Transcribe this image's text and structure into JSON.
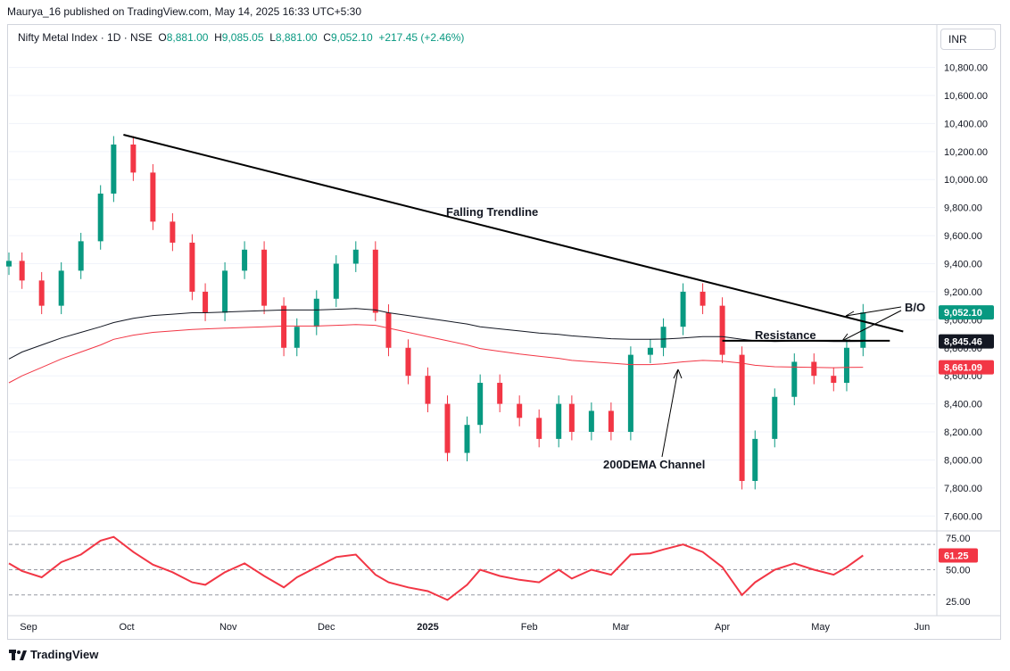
{
  "header": {
    "published_line": "Maurya_16 published on TradingView.com, May 14, 2025 16:33 UTC+5:30"
  },
  "legend": {
    "symbol": "Nifty Metal Index · 1D · NSE",
    "o_label": "O",
    "o_value": "8,881.00",
    "h_label": "H",
    "h_value": "9,085.05",
    "l_label": "L",
    "l_value": "8,881.00",
    "c_label": "C",
    "c_value": "9,052.10",
    "change": "+217.45 (+2.46%)"
  },
  "currency_button": "INR",
  "colors": {
    "up": "#089981",
    "down": "#f23645",
    "ema_black": "#131722",
    "ema_red": "#f23645",
    "rsi": "#f23645",
    "grid": "#d1d4dc"
  },
  "price_axis": {
    "ticks": [
      "10,800.00",
      "10,600.00",
      "10,400.00",
      "10,200.00",
      "10,000.00",
      "9,800.00",
      "9,600.00",
      "9,400.00",
      "9,200.00",
      "9,000.00",
      "8,800.00",
      "8,600.00",
      "8,400.00",
      "8,200.00",
      "8,000.00",
      "7,800.00",
      "7,600.00"
    ],
    "tag_close": "9,052.10",
    "tag_ema_black": "8,845.46",
    "tag_ema_red": "8,661.09"
  },
  "rsi_axis": {
    "ticks": [
      "75.00",
      "50.00",
      "25.00"
    ],
    "tag_rsi": "61.25"
  },
  "time_axis": {
    "labels": [
      "Sep",
      "Oct",
      "Nov",
      "Dec",
      "2025",
      "Feb",
      "Mar",
      "Apr",
      "May",
      "Jun"
    ]
  },
  "annotations": {
    "trendline": "Falling Trendline",
    "resistance": "Resistance",
    "channel": "200DEMA Channel",
    "breakout": "B/O"
  },
  "footer": {
    "brand": "TradingView"
  },
  "chart_data": {
    "type": "candlestick",
    "symbol": "Nifty Metal Index",
    "interval": "1D",
    "exchange": "NSE",
    "x": [
      "2024-08-26",
      "2024-08-30",
      "2024-09-05",
      "2024-09-11",
      "2024-09-17",
      "2024-09-23",
      "2024-09-27",
      "2024-10-03",
      "2024-10-09",
      "2024-10-15",
      "2024-10-21",
      "2024-10-25",
      "2024-10-31",
      "2024-11-06",
      "2024-11-12",
      "2024-11-18",
      "2024-11-22",
      "2024-11-28",
      "2024-12-04",
      "2024-12-10",
      "2024-12-16",
      "2024-12-20",
      "2024-12-26",
      "2025-01-01",
      "2025-01-07",
      "2025-01-13",
      "2025-01-17",
      "2025-01-23",
      "2025-01-29",
      "2025-02-04",
      "2025-02-10",
      "2025-02-14",
      "2025-02-20",
      "2025-02-26",
      "2025-03-04",
      "2025-03-10",
      "2025-03-14",
      "2025-03-20",
      "2025-03-26",
      "2025-04-01",
      "2025-04-07",
      "2025-04-11",
      "2025-04-17",
      "2025-04-23",
      "2025-04-29",
      "2025-05-05",
      "2025-05-09",
      "2025-05-14"
    ],
    "close": [
      9420,
      9280,
      9100,
      9350,
      9560,
      9900,
      10250,
      10050,
      9700,
      9550,
      9200,
      9050,
      9350,
      9500,
      9100,
      8800,
      8950,
      9150,
      9400,
      9500,
      9050,
      8800,
      8600,
      8400,
      8050,
      8250,
      8550,
      8400,
      8300,
      8150,
      8400,
      8200,
      8350,
      8200,
      8750,
      8800,
      8950,
      9200,
      9100,
      8750,
      7850,
      8150,
      8450,
      8700,
      8600,
      8550,
      8800,
      9052.1
    ],
    "ema200_black": [
      8720,
      8770,
      8820,
      8870,
      8910,
      8950,
      8980,
      9010,
      9030,
      9040,
      9050,
      9050,
      9055,
      9060,
      9065,
      9070,
      9070,
      9070,
      9075,
      9080,
      9070,
      9050,
      9030,
      9010,
      8990,
      8970,
      8950,
      8935,
      8920,
      8905,
      8895,
      8885,
      8875,
      8865,
      8860,
      8860,
      8862,
      8870,
      8880,
      8880,
      8860,
      8850,
      8845,
      8848,
      8848,
      8845,
      8845,
      8845.46
    ],
    "ema200_red": [
      8550,
      8600,
      8660,
      8720,
      8770,
      8820,
      8860,
      8890,
      8910,
      8920,
      8930,
      8935,
      8940,
      8945,
      8950,
      8955,
      8955,
      8955,
      8960,
      8965,
      8960,
      8940,
      8910,
      8880,
      8850,
      8820,
      8795,
      8775,
      8755,
      8740,
      8725,
      8710,
      8700,
      8690,
      8680,
      8680,
      8685,
      8700,
      8710,
      8705,
      8690,
      8675,
      8665,
      8662,
      8660,
      8658,
      8660,
      8661.09
    ],
    "rsi_close": [
      55,
      49,
      44,
      56,
      62,
      73,
      76,
      64,
      54,
      48,
      40,
      38,
      48,
      55,
      45,
      36,
      44,
      52,
      60,
      62,
      46,
      40,
      36,
      33,
      26,
      38,
      50,
      45,
      42,
      40,
      50,
      43,
      50,
      46,
      62,
      63,
      66,
      70,
      64,
      52,
      30,
      40,
      50,
      55,
      50,
      46,
      52,
      61.25
    ],
    "ylim": [
      7500,
      10950
    ],
    "rsi_ylim": [
      15,
      80
    ],
    "trendline": {
      "from": [
        "2024-09-30",
        10320
      ],
      "to": [
        "2025-05-14",
        8980
      ]
    },
    "resistance": 8850
  }
}
